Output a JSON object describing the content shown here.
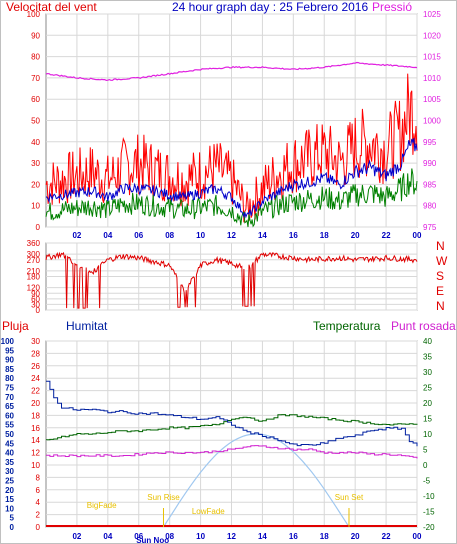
{
  "header": {
    "left_label": "Velocitat del vent",
    "center_title": "24 hour graph day : 25 Febrero 2016",
    "right_label": "Pressió"
  },
  "colors": {
    "wind_gust": "#ff0000",
    "wind_avg": "#0000cc",
    "wind_low": "#008000",
    "pressure": "#e020e0",
    "direction": "#e00000",
    "humidity": "#0020a0",
    "temperature": "#006400",
    "dewpoint": "#d020d0",
    "rain": "#e00000",
    "sun": "#a0c8f0",
    "grid": "#d8d8d8",
    "border": "#888888",
    "ephemeris": "#e8c000"
  },
  "chart_data": [
    {
      "type": "line",
      "id": "wind_pressure",
      "y_label": "Velocitat del vent",
      "y_right_label": "Pressió",
      "ylim": [
        0,
        100
      ],
      "yticks": [
        0,
        10,
        20,
        30,
        40,
        50,
        60,
        70,
        80,
        90,
        100
      ],
      "ylim_right": [
        975,
        1025
      ],
      "yticks_right": [
        975,
        980,
        985,
        990,
        995,
        1000,
        1005,
        1010,
        1015,
        1020,
        1025
      ],
      "x_ticks": [
        "02",
        "04",
        "06",
        "08",
        "10",
        "12",
        "14",
        "16",
        "18",
        "20",
        "22",
        "00"
      ],
      "x_hours": [
        2,
        4,
        6,
        8,
        10,
        12,
        14,
        16,
        18,
        20,
        22,
        24
      ],
      "series": [
        {
          "name": "gust",
          "axis": "left",
          "hours": [
            0,
            1,
            2,
            3,
            4,
            5,
            6,
            7,
            8,
            9,
            10,
            11,
            12,
            13,
            14,
            15,
            16,
            17,
            18,
            19,
            20,
            21,
            22,
            23,
            23.5,
            24
          ],
          "values": [
            20,
            22,
            24,
            26,
            22,
            28,
            30,
            27,
            24,
            22,
            25,
            28,
            22,
            8,
            18,
            25,
            30,
            32,
            35,
            30,
            38,
            40,
            36,
            45,
            55,
            55
          ]
        },
        {
          "name": "avg",
          "axis": "left",
          "hours": [
            0,
            1,
            2,
            3,
            4,
            5,
            6,
            7,
            8,
            9,
            10,
            11,
            12,
            13,
            14,
            15,
            16,
            17,
            18,
            19,
            20,
            21,
            22,
            23,
            23.5,
            24
          ],
          "values": [
            14,
            15,
            16,
            17,
            14,
            18,
            18,
            17,
            15,
            14,
            16,
            18,
            14,
            5,
            12,
            16,
            20,
            21,
            23,
            20,
            26,
            28,
            24,
            30,
            38,
            38
          ]
        },
        {
          "name": "low",
          "axis": "left",
          "hours": [
            0,
            1,
            2,
            3,
            4,
            5,
            6,
            7,
            8,
            9,
            10,
            11,
            12,
            13,
            14,
            15,
            16,
            17,
            18,
            19,
            20,
            21,
            22,
            23,
            23.5,
            24
          ],
          "values": [
            7,
            8,
            9,
            10,
            8,
            11,
            11,
            10,
            9,
            8,
            9,
            10,
            8,
            2,
            7,
            10,
            12,
            13,
            14,
            12,
            15,
            16,
            14,
            18,
            22,
            20
          ]
        },
        {
          "name": "pressure",
          "axis": "right",
          "hours": [
            0,
            2,
            4,
            6,
            8,
            10,
            12,
            14,
            16,
            18,
            20,
            22,
            24
          ],
          "values": [
            1011,
            1010,
            1009.5,
            1010,
            1011,
            1012,
            1012.5,
            1012.5,
            1012,
            1012.5,
            1013.5,
            1013,
            1012.5
          ]
        }
      ]
    },
    {
      "type": "scatter",
      "id": "wind_direction",
      "ylim": [
        0,
        360
      ],
      "yticks": [
        0,
        30,
        60,
        90,
        120,
        180,
        210,
        270,
        300,
        360
      ],
      "compass_labels": [
        "N",
        "W",
        "S",
        "E",
        "N"
      ],
      "x_ticks": [],
      "series": [
        {
          "name": "direction",
          "hours": [
            0,
            1,
            2,
            3,
            4,
            5,
            6,
            7,
            8,
            9,
            10,
            11,
            12,
            13,
            14,
            15,
            16,
            17,
            18,
            19,
            20,
            21,
            22,
            23,
            24
          ],
          "values": [
            280,
            300,
            250,
            200,
            270,
            290,
            280,
            260,
            240,
            100,
            240,
            270,
            250,
            220,
            300,
            290,
            280,
            270,
            275,
            280,
            270,
            275,
            280,
            275,
            270
          ]
        }
      ]
    },
    {
      "type": "line",
      "id": "temp_hum_rain",
      "labels": {
        "rain": "Pluja",
        "humidity": "Humitat",
        "temperature": "Temperatura",
        "dewpoint": "Punt rosada"
      },
      "ylim_humidity": [
        0,
        100
      ],
      "yticks_humidity": [
        0,
        5,
        10,
        15,
        20,
        25,
        30,
        35,
        40,
        45,
        50,
        55,
        60,
        65,
        70,
        75,
        80,
        85,
        90,
        95,
        100
      ],
      "ylim_rain": [
        0,
        30
      ],
      "yticks_rain": [
        0,
        2,
        4,
        6,
        8,
        10,
        12,
        14,
        16,
        18,
        20,
        22,
        24,
        26,
        28,
        30
      ],
      "ylim_temp": [
        -20,
        40
      ],
      "yticks_temp": [
        -20,
        -15,
        -10,
        -5,
        0,
        5,
        10,
        15,
        20,
        25,
        30,
        35,
        40
      ],
      "x_ticks": [
        "02",
        "04",
        "06",
        "08",
        "10",
        "12",
        "14",
        "16",
        "18",
        "20",
        "22",
        "00"
      ],
      "x_hours": [
        2,
        4,
        6,
        8,
        10,
        12,
        14,
        16,
        18,
        20,
        22,
        24
      ],
      "annotations": {
        "sun_rise": "Sun Rise",
        "sun_set": "Sun Set",
        "bigfade": "BigFade",
        "lowfade": "LowFade",
        "sun_noon": "Sun Noo"
      },
      "sun_hours": [
        7.6,
        13.6,
        19.6
      ],
      "series": [
        {
          "name": "humidity",
          "axis": "humidity",
          "hours": [
            0,
            0.5,
            1,
            2,
            3,
            4,
            5,
            6,
            7,
            8,
            9,
            10,
            11,
            12,
            13,
            14,
            15,
            16,
            17,
            18,
            19,
            20,
            21,
            22,
            23,
            23.5,
            24
          ],
          "values": [
            78,
            70,
            64,
            63,
            63,
            62,
            62,
            61,
            61,
            60,
            59,
            58,
            59,
            55,
            51,
            49,
            47,
            44,
            44,
            45,
            48,
            49,
            52,
            53,
            53,
            46,
            44
          ]
        },
        {
          "name": "temperature",
          "axis": "temp",
          "hours": [
            0,
            1,
            2,
            3,
            4,
            5,
            6,
            7,
            8,
            9,
            10,
            11,
            12,
            13,
            14,
            15,
            16,
            17,
            18,
            19,
            20,
            21,
            22,
            23,
            24
          ],
          "values": [
            8,
            9,
            10,
            10,
            10.5,
            11,
            11,
            11.5,
            12,
            12,
            12.5,
            13,
            15,
            15.5,
            14,
            16,
            16,
            15.5,
            15,
            14.5,
            14,
            13.5,
            13,
            13,
            13.5
          ]
        },
        {
          "name": "dewpoint",
          "axis": "temp",
          "hours": [
            0,
            1,
            2,
            3,
            4,
            5,
            6,
            7,
            8,
            9,
            10,
            11,
            12,
            13,
            14,
            15,
            16,
            17,
            18,
            19,
            20,
            21,
            22,
            23,
            24
          ],
          "values": [
            3,
            3,
            3,
            3,
            3,
            3,
            3.5,
            4,
            4,
            4,
            4,
            4.5,
            5,
            6,
            6,
            5.5,
            5,
            5,
            4,
            4,
            4,
            3.5,
            3.5,
            3,
            2
          ]
        },
        {
          "name": "rain",
          "axis": "rain",
          "hours": [
            0,
            24
          ],
          "values": [
            0,
            0
          ]
        }
      ]
    }
  ]
}
